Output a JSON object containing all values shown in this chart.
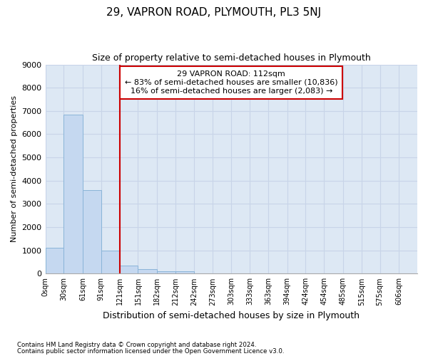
{
  "title": "29, VAPRON ROAD, PLYMOUTH, PL3 5NJ",
  "subtitle": "Size of property relative to semi-detached houses in Plymouth",
  "xlabel": "Distribution of semi-detached houses by size in Plymouth",
  "ylabel": "Number of semi-detached properties",
  "footer_line1": "Contains HM Land Registry data © Crown copyright and database right 2024.",
  "footer_line2": "Contains public sector information licensed under the Open Government Licence v3.0.",
  "annotation_title": "29 VAPRON ROAD: 112sqm",
  "annotation_line2": "← 83% of semi-detached houses are smaller (10,836)",
  "annotation_line3": "16% of semi-detached houses are larger (2,083) →",
  "bar_starts": [
    0,
    30,
    61,
    91,
    121,
    151,
    182,
    212,
    242,
    273,
    303,
    333,
    363,
    394,
    424,
    454,
    485,
    515,
    545,
    576
  ],
  "bar_widths": [
    30,
    31,
    30,
    30,
    30,
    31,
    30,
    30,
    31,
    30,
    30,
    30,
    31,
    30,
    30,
    31,
    30,
    30,
    31,
    30
  ],
  "bar_heights": [
    1100,
    6850,
    3600,
    1000,
    350,
    200,
    100,
    100,
    0,
    0,
    0,
    0,
    0,
    0,
    0,
    0,
    0,
    0,
    0,
    0
  ],
  "bar_color": "#c5d8f0",
  "bar_edge_color": "#8ab4d8",
  "vline_color": "#cc0000",
  "vline_x": 121,
  "annotation_box_color": "#ffffff",
  "annotation_box_edge": "#cc0000",
  "grid_color": "#c8d4e8",
  "bg_color": "#dde8f4",
  "ylim": [
    0,
    9000
  ],
  "yticks": [
    0,
    1000,
    2000,
    3000,
    4000,
    5000,
    6000,
    7000,
    8000,
    9000
  ],
  "xtick_labels": [
    "0sqm",
    "30sqm",
    "61sqm",
    "91sqm",
    "121sqm",
    "151sqm",
    "182sqm",
    "212sqm",
    "242sqm",
    "273sqm",
    "303sqm",
    "333sqm",
    "363sqm",
    "394sqm",
    "424sqm",
    "454sqm",
    "485sqm",
    "515sqm",
    "575sqm",
    "606sqm"
  ],
  "xlim_max": 606
}
